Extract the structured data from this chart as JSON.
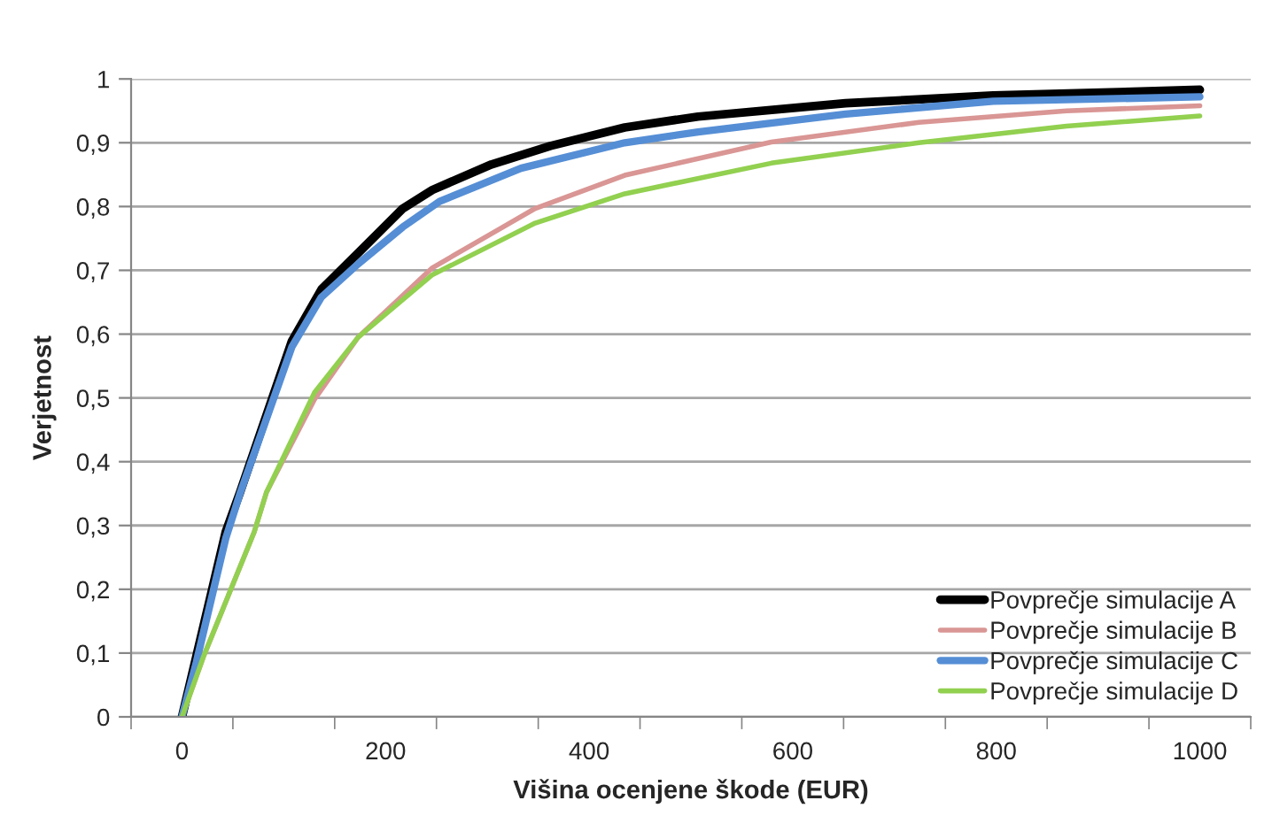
{
  "chart_data": {
    "type": "line",
    "xlabel": "Višina ocenjene škode (EUR)",
    "ylabel": "Verjetnost",
    "xlim": [
      -50,
      1050
    ],
    "xticks": [
      {
        "value": -50,
        "label": null
      },
      {
        "value": 0,
        "label": "0"
      },
      {
        "value": 50,
        "label": null
      },
      {
        "value": 150,
        "label": null
      },
      {
        "value": 200,
        "label": "200"
      },
      {
        "value": 250,
        "label": null
      },
      {
        "value": 350,
        "label": null
      },
      {
        "value": 400,
        "label": "400"
      },
      {
        "value": 450,
        "label": null
      },
      {
        "value": 550,
        "label": null
      },
      {
        "value": 600,
        "label": "600"
      },
      {
        "value": 650,
        "label": null
      },
      {
        "value": 750,
        "label": null
      },
      {
        "value": 800,
        "label": "800"
      },
      {
        "value": 850,
        "label": null
      },
      {
        "value": 950,
        "label": null
      },
      {
        "value": 1000,
        "label": "1000"
      },
      {
        "value": 1050,
        "label": null
      }
    ],
    "ylim": [
      0,
      1
    ],
    "yticks": [
      0,
      {
        "value": 0.1,
        "label": "0,1"
      },
      {
        "value": 0.2,
        "label": "0,2"
      },
      {
        "value": 0.3,
        "label": "0,3"
      },
      {
        "value": 0.4,
        "label": "0,4"
      },
      {
        "value": 0.5,
        "label": "0,5"
      },
      {
        "value": 0.6,
        "label": "0,6"
      },
      {
        "value": 0.7,
        "label": "0,7"
      },
      {
        "value": 0.8,
        "label": "0,8"
      },
      {
        "value": 0.9,
        "label": "0,9"
      },
      1
    ],
    "grid": "y",
    "legend": "bottom right",
    "marker": "none",
    "line_style": "solid",
    "series": [
      {
        "name": "Povprečje simulacije A",
        "color": "#000000",
        "x": [
          0,
          14,
          43,
          57,
          108,
          137,
          173,
          217,
          246,
          304,
          362,
          435,
          507,
          652,
          797,
          1000
        ],
        "values": [
          0,
          0.094,
          0.29,
          0.352,
          0.589,
          0.67,
          0.727,
          0.797,
          0.826,
          0.866,
          0.895,
          0.924,
          0.941,
          0.962,
          0.974,
          0.983
        ]
      },
      {
        "name": "Povprečje simulacije B",
        "color": "#d99694",
        "x": [
          0,
          21,
          71,
          83,
          130,
          173,
          246,
          347,
          435,
          579,
          724,
          869,
          1000
        ],
        "values": [
          0,
          0.094,
          0.29,
          0.352,
          0.497,
          0.595,
          0.704,
          0.797,
          0.849,
          0.901,
          0.932,
          0.95,
          0.958
        ]
      },
      {
        "name": "Povprečje simulacije C",
        "color": "#558ed5",
        "x": [
          0,
          14,
          43,
          57,
          108,
          137,
          173,
          217,
          253,
          333,
          435,
          507,
          652,
          797,
          1000
        ],
        "values": [
          0,
          0.085,
          0.28,
          0.35,
          0.58,
          0.658,
          0.71,
          0.768,
          0.808,
          0.86,
          0.9,
          0.917,
          0.945,
          0.965,
          0.972
        ]
      },
      {
        "name": "Povprečje simulacije D",
        "color": "#92d050",
        "x": [
          0,
          21,
          71,
          83,
          130,
          173,
          246,
          347,
          435,
          579,
          724,
          869,
          1000
        ],
        "values": [
          0,
          0.094,
          0.29,
          0.352,
          0.508,
          0.595,
          0.693,
          0.774,
          0.82,
          0.868,
          0.9,
          0.926,
          0.942
        ]
      }
    ]
  }
}
